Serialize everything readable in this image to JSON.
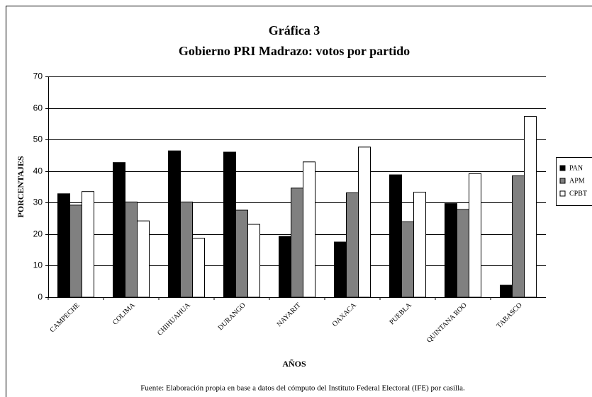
{
  "chart_data": {
    "type": "bar",
    "title": "Gráfica 3",
    "subtitle": "Gobierno PRI Madrazo: votos por partido",
    "y_label": "PORCENTAJES",
    "x_label": "AÑOS",
    "source": "Fuente: Elaboración propia en base a datos del cómputo del Instituto Federal Electoral (IFE) por casilla.",
    "categories": [
      "CAMPECHE",
      "COLIMA",
      "CHIHUAHUA",
      "DURANGO",
      "NAYARIT",
      "OAXACA",
      "PUEBLA",
      "QUINTANA ROO",
      "TABASCO"
    ],
    "series": [
      {
        "name": "PAN",
        "color": "#000000",
        "values": [
          32.8,
          42.7,
          46.4,
          46.0,
          19.3,
          17.5,
          38.8,
          29.7,
          3.8
        ]
      },
      {
        "name": "APM",
        "color": "#808080",
        "values": [
          29.2,
          30.2,
          30.2,
          27.6,
          34.6,
          33.1,
          23.9,
          27.8,
          38.5
        ]
      },
      {
        "name": "CPBT",
        "color": "#ffffff",
        "values": [
          33.5,
          24.2,
          18.7,
          23.1,
          42.9,
          47.6,
          33.3,
          39.2,
          57.3
        ]
      }
    ],
    "ylim": [
      0,
      70
    ],
    "yticks": [
      0,
      10,
      20,
      30,
      40,
      50,
      60,
      70
    ],
    "grid": true,
    "legend": "right"
  }
}
